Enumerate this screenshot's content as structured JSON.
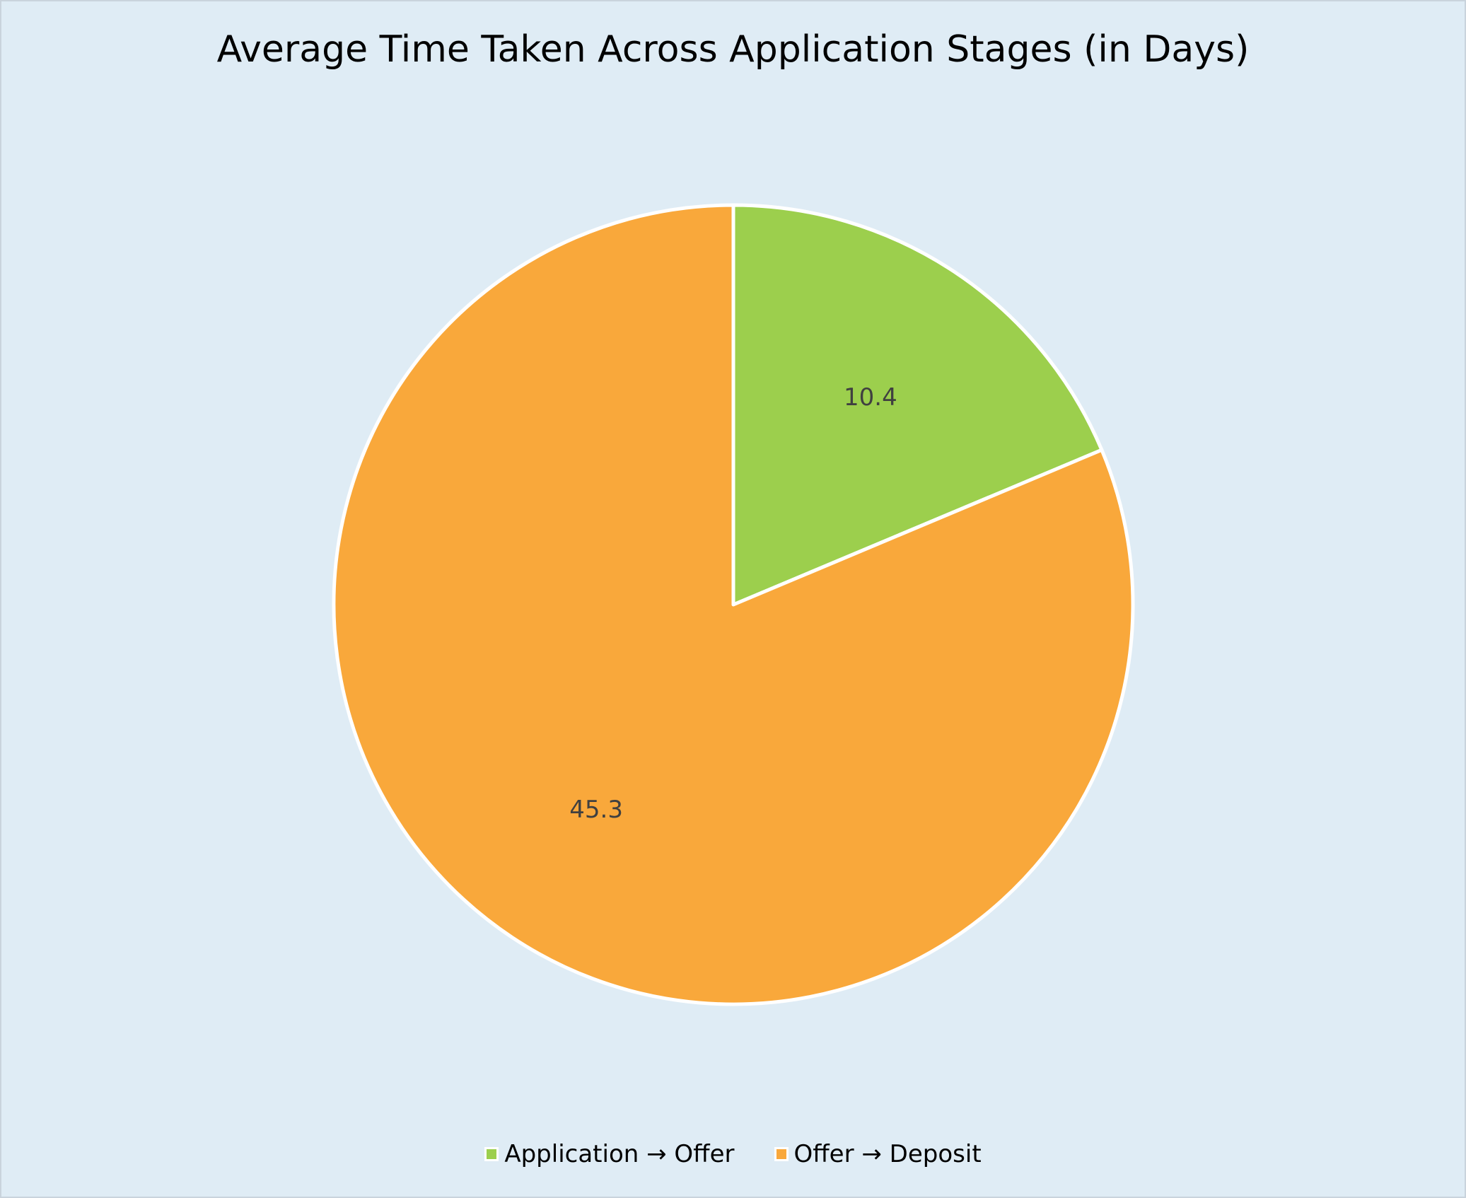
{
  "chart_data": {
    "type": "pie",
    "title": "Average Time Taken Across Application Stages (in Days)",
    "categories": [
      "Application → Offer",
      "Offer → Deposit"
    ],
    "values": [
      10.4,
      45.3
    ],
    "data_labels": [
      "10.4",
      "45.3"
    ],
    "colors": [
      "#9ccf4d",
      "#f9a83b"
    ],
    "slice_border_color": "#ffffff",
    "background_color": "#dfecf5",
    "start_angle": "12 o'clock",
    "direction": "clockwise",
    "legend": {
      "placement": "bottom",
      "entries": [
        "Application → Offer",
        "Offer → Deposit"
      ]
    }
  }
}
